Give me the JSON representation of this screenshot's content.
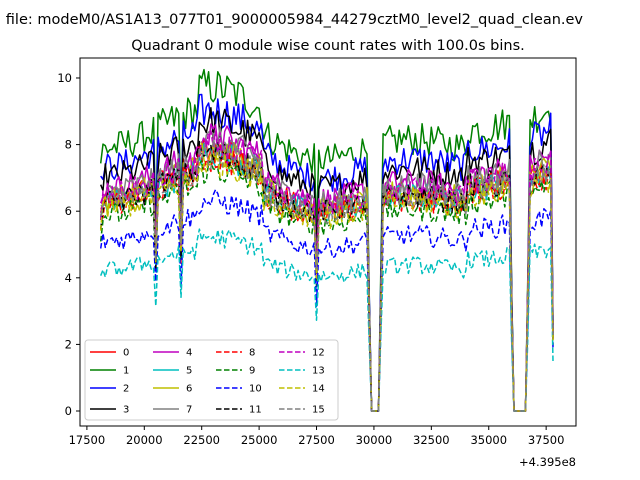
{
  "chart_data": {
    "type": "line",
    "suptitle": "n file: modeM0/AS1A13_077T01_9000005984_44279cztM0_level2_quad_clean.ev",
    "title": "Quadrant 0 module wise count rates with 100.0s bins.",
    "xlabel": "",
    "ylabel": "",
    "x_offset_label": "+4.395e8",
    "x_ticks": [
      "17500",
      "20000",
      "22500",
      "25000",
      "27500",
      "30000",
      "32500",
      "35000",
      "37500"
    ],
    "y_ticks": [
      "0",
      "2",
      "4",
      "6",
      "8",
      "10"
    ],
    "xlim": [
      17200,
      38800
    ],
    "ylim": [
      -0.45,
      10.6
    ],
    "legend_loc": "lower left",
    "x_range": [
      18100,
      37850
    ],
    "bin_width": 100,
    "gaps": [
      {
        "start": 29900,
        "end": 30200
      },
      {
        "start": 36050,
        "end": 36650
      }
    ],
    "series": [
      {
        "name": "0",
        "color": "#ff0000",
        "dash": "solid",
        "level": 6.6
      },
      {
        "name": "1",
        "color": "#008000",
        "dash": "solid",
        "level": 8.2
      },
      {
        "name": "2",
        "color": "#0000ff",
        "dash": "solid",
        "level": 7.6
      },
      {
        "name": "3",
        "color": "#000000",
        "dash": "solid",
        "level": 7.3
      },
      {
        "name": "4",
        "color": "#bf00bf",
        "dash": "solid",
        "level": 6.9
      },
      {
        "name": "5",
        "color": "#00bfbf",
        "dash": "solid",
        "level": 6.5
      },
      {
        "name": "6",
        "color": "#bfbf00",
        "dash": "solid",
        "level": 6.6
      },
      {
        "name": "7",
        "color": "#808080",
        "dash": "solid",
        "level": 6.8
      },
      {
        "name": "8",
        "color": "#ff0000",
        "dash": "dashed",
        "level": 6.4
      },
      {
        "name": "9",
        "color": "#008000",
        "dash": "dashed",
        "level": 6.1
      },
      {
        "name": "10",
        "color": "#0000ff",
        "dash": "dashed",
        "level": 5.3
      },
      {
        "name": "11",
        "color": "#000000",
        "dash": "dashed",
        "level": 6.5
      },
      {
        "name": "12",
        "color": "#bf00bf",
        "dash": "dashed",
        "level": 6.7
      },
      {
        "name": "13",
        "color": "#00bfbf",
        "dash": "dashed",
        "level": 4.4
      },
      {
        "name": "14",
        "color": "#bfbf00",
        "dash": "dashed",
        "level": 6.3
      },
      {
        "name": "15",
        "color": "#808080",
        "dash": "dashed",
        "level": 6.5
      }
    ]
  }
}
